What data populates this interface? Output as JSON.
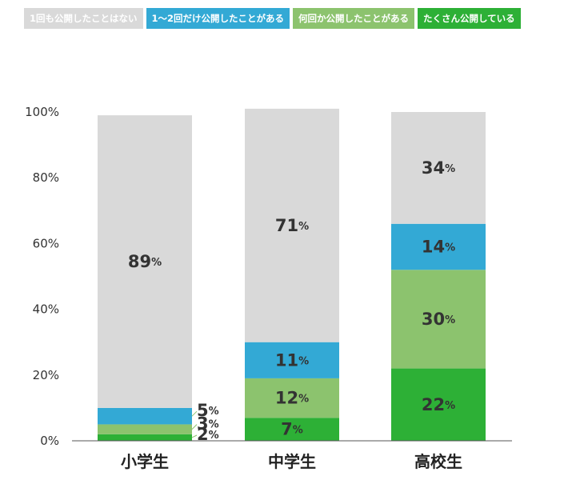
{
  "chart_data": {
    "type": "bar",
    "stacked": true,
    "categories": [
      "小学生",
      "中学生",
      "高校生"
    ],
    "series": [
      {
        "name": "たくさん公開している",
        "values": [
          2,
          7,
          22
        ],
        "color": "#2db036"
      },
      {
        "name": "何回か公開したことがある",
        "values": [
          3,
          12,
          30
        ],
        "color": "#8cc36e"
      },
      {
        "name": "1～2回だけ公開したことがある",
        "values": [
          5,
          11,
          14
        ],
        "color": "#33a9d5"
      },
      {
        "name": "1回も公開したことはない",
        "values": [
          89,
          71,
          34
        ],
        "color": "#d9d9d9"
      }
    ],
    "legend_order": [
      3,
      2,
      1,
      0
    ],
    "ylim": [
      0,
      100
    ],
    "yticks": [
      0,
      20,
      40,
      60,
      80,
      100
    ],
    "ytick_labels": [
      "0%",
      "20%",
      "40%",
      "60%",
      "80%",
      "100%"
    ],
    "value_suffix": "%",
    "legend_position": "top-left",
    "grid": false,
    "xlabel": "",
    "ylabel": "",
    "title": ""
  }
}
